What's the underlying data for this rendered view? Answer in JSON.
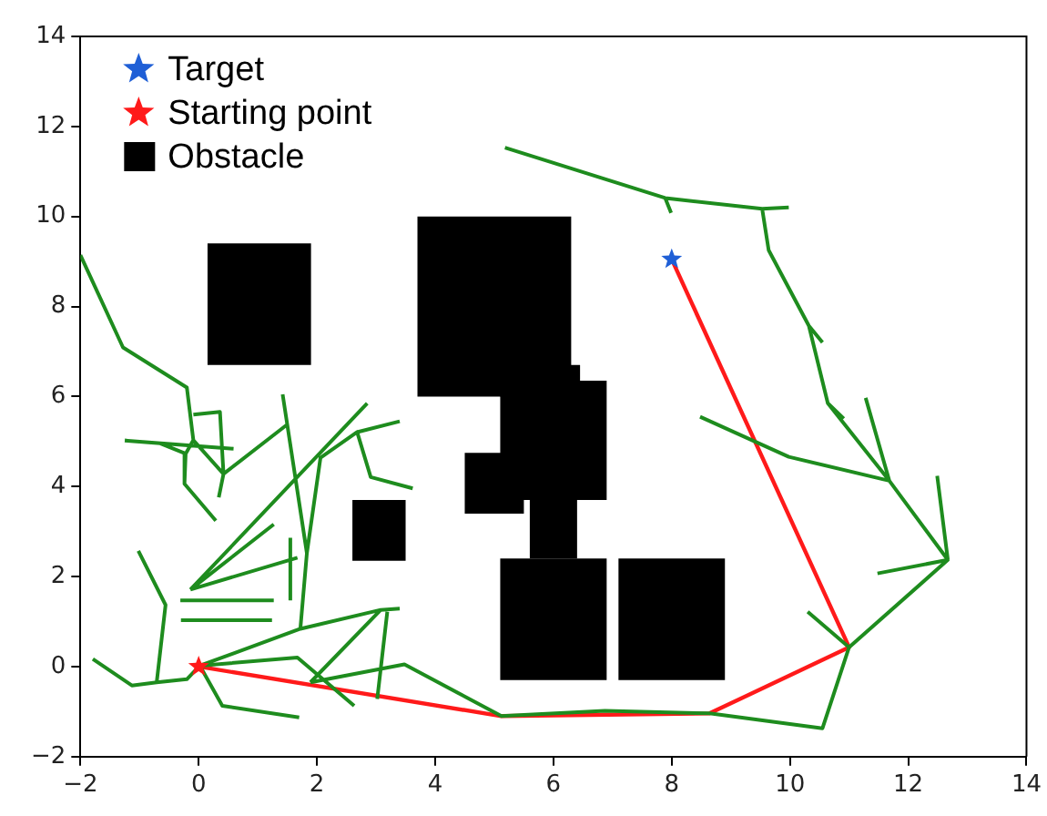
{
  "chart_data": {
    "type": "line",
    "xlim": [
      -2,
      14
    ],
    "ylim": [
      -2,
      14
    ],
    "xticks": [
      -2,
      0,
      2,
      4,
      6,
      8,
      10,
      12,
      14
    ],
    "yticks": [
      -2,
      0,
      2,
      4,
      6,
      8,
      10,
      12,
      14
    ],
    "grid": false,
    "legend": "top left",
    "series": [
      {
        "type": "scatter",
        "name": "Target",
        "color": "#1f5fd6",
        "marker": "star",
        "x": [
          8
        ],
        "values": [
          9.05
        ]
      },
      {
        "type": "scatter",
        "name": "Starting point",
        "color": "#ff1a1a",
        "marker": "star",
        "x": [
          0
        ],
        "values": [
          0
        ]
      },
      {
        "type": "area",
        "name": "Obstacle",
        "color": "#000000",
        "x": [
          0.15,
          1.9,
          1.9,
          0.15,
          null,
          3.7,
          6.3,
          6.3,
          3.7,
          null,
          5.1,
          6.45,
          6.45,
          5.1,
          null,
          5.1,
          6.9,
          6.9,
          5.1,
          null,
          4.5,
          5.5,
          5.5,
          4.5,
          null,
          5.6,
          6.4,
          6.4,
          5.6,
          null,
          5.1,
          6.9,
          6.9,
          5.1,
          null,
          7.1,
          8.9,
          8.9,
          7.1,
          null,
          2.6,
          3.5,
          3.5,
          2.6
        ],
        "values": [
          6.7,
          6.7,
          9.4,
          9.4,
          null,
          6.0,
          6.0,
          10.0,
          10.0,
          null,
          6.0,
          6.0,
          6.7,
          6.7,
          null,
          3.7,
          3.7,
          6.35,
          6.35,
          null,
          3.4,
          3.4,
          4.75,
          4.75,
          null,
          2.4,
          2.4,
          3.7,
          3.7,
          null,
          -0.3,
          -0.3,
          2.4,
          2.4,
          null,
          -0.3,
          -0.3,
          2.4,
          2.4,
          null,
          2.35,
          2.35,
          3.7,
          3.7
        ]
      },
      {
        "color": "#1e8c1e",
        "x": [
          5.18,
          7.89,
          9.53,
          9.98,
          null,
          7.89,
          7.99,
          null,
          9.53,
          9.64,
          10.32,
          10.55,
          null,
          10.32,
          10.64,
          10.91,
          null,
          10.64,
          11.68,
          12.67,
          null,
          11.28,
          11.68,
          null,
          8.48,
          9.98,
          11.68,
          null,
          12.49,
          12.67,
          null,
          11.48,
          12.67,
          11.0,
          10.55,
          8.64,
          6.87,
          5.12,
          3.48,
          1.89,
          null,
          10.3,
          11.0,
          null,
          0.02,
          1.72,
          3.08,
          3.4,
          null,
          0.02,
          1.67,
          2.63,
          null,
          0.02,
          0.4,
          1.7,
          null,
          0.02,
          -0.2,
          -0.71,
          -1.13,
          -1.79,
          null,
          -0.71,
          -0.56,
          -1.02,
          null,
          -0.31,
          1.27,
          null,
          -0.3,
          1.24,
          null,
          -0.14,
          1.27,
          null,
          -0.14,
          1.67,
          null,
          -0.14,
          2.85,
          null,
          1.55,
          1.55,
          null,
          1.72,
          1.83,
          2.06,
          2.68,
          2.91,
          3.62,
          null,
          2.68,
          3.4,
          null,
          1.83,
          1.42,
          null,
          1.89,
          3.08,
          null,
          3.19,
          3.02,
          null,
          -2,
          -1.28,
          -0.2,
          -0.09,
          0.42,
          1.5,
          null,
          0.42,
          0.34,
          null,
          -0.09,
          -0.22,
          -0.24,
          0.29,
          null,
          -1.25,
          -0.65,
          -0.22,
          null,
          -1.25,
          0.59,
          null,
          -0.09,
          0.36,
          0.42
        ],
        "values": [
          11.53,
          10.41,
          10.17,
          10.2,
          null,
          10.41,
          10.08,
          null,
          10.17,
          9.25,
          7.57,
          7.2,
          null,
          7.57,
          5.85,
          5.51,
          null,
          5.85,
          4.13,
          2.37,
          null,
          5.97,
          4.13,
          null,
          5.55,
          4.66,
          4.13,
          null,
          4.24,
          2.37,
          null,
          2.07,
          2.37,
          0.43,
          -1.37,
          -1.04,
          -0.98,
          -1.1,
          0.05,
          -0.35,
          null,
          1.22,
          0.43,
          null,
          0.02,
          0.84,
          1.26,
          1.29,
          null,
          0.02,
          0.2,
          -0.87,
          null,
          0.02,
          -0.87,
          -1.13,
          null,
          0.02,
          -0.28,
          -0.35,
          -0.42,
          0.17,
          null,
          -0.35,
          1.37,
          2.57,
          null,
          1.47,
          1.47,
          null,
          1.03,
          1.03,
          null,
          1.71,
          3.16,
          null,
          1.71,
          2.42,
          null,
          1.71,
          5.85,
          null,
          1.47,
          2.86,
          null,
          0.84,
          2.52,
          4.64,
          5.21,
          4.21,
          3.96,
          null,
          5.21,
          5.45,
          null,
          2.52,
          6.05,
          null,
          -0.35,
          1.26,
          null,
          1.22,
          -0.72,
          null,
          9.14,
          7.09,
          6.2,
          5.03,
          4.28,
          5.38,
          null,
          4.28,
          3.76,
          null,
          5.03,
          4.73,
          4.06,
          3.24,
          null,
          5.02,
          4.96,
          4.73,
          null,
          5.02,
          4.84,
          null,
          5.6,
          5.66,
          4.28
        ]
      },
      {
        "color": "#ff1a1a",
        "x": [
          0,
          5.12,
          8.64,
          11.0,
          8
        ],
        "values": [
          0,
          -1.1,
          -1.04,
          0.43,
          9.05
        ]
      }
    ]
  }
}
